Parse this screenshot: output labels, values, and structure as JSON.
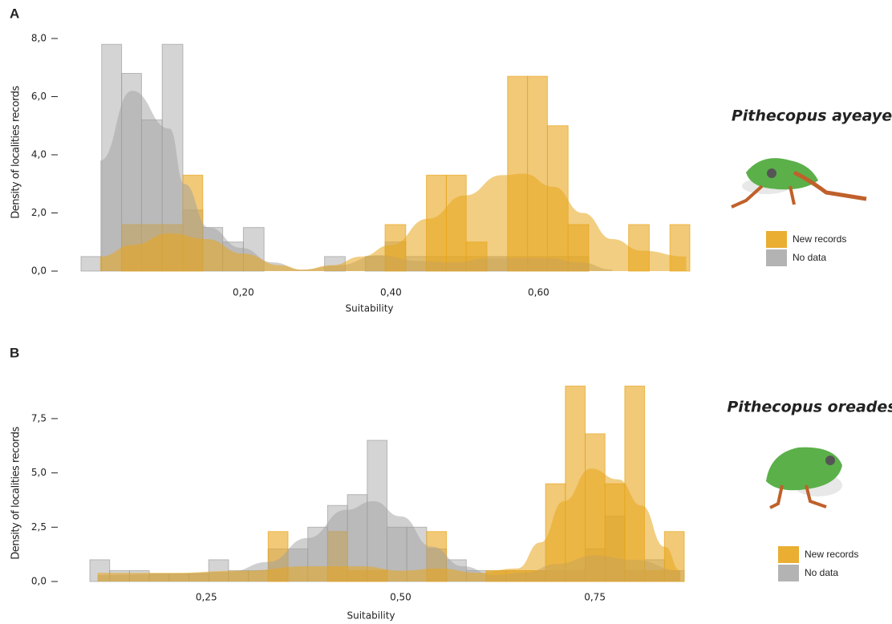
{
  "charts": [
    {
      "panel": "A",
      "annotation": "Pithecopus ayeaye",
      "chart_data": {
        "type": "histogram",
        "xlabel": "Suitability",
        "ylabel": "Density of localities records",
        "xlim": [
          -0.02,
          0.805
        ],
        "ylim": [
          0,
          8.2
        ],
        "xticks": [
          {
            "value": 0.2,
            "label": "0,20"
          },
          {
            "value": 0.4,
            "label": "0,40"
          },
          {
            "value": 0.6,
            "label": "0,60"
          }
        ],
        "yticks": [
          {
            "value": 0,
            "label": "0,0"
          },
          {
            "value": 2,
            "label": "2,0"
          },
          {
            "value": 4,
            "label": "4,0"
          },
          {
            "value": 6,
            "label": "6,0"
          },
          {
            "value": 8,
            "label": "8,0"
          }
        ],
        "bins": [
          -0.02,
          0.008,
          0.035,
          0.062,
          0.09,
          0.118,
          0.145,
          0.172,
          0.2,
          0.228,
          0.255,
          0.282,
          0.31,
          0.338,
          0.365,
          0.392,
          0.42,
          0.448,
          0.475,
          0.502,
          0.53,
          0.558,
          0.585,
          0.612,
          0.64,
          0.668,
          0.695,
          0.722,
          0.75,
          0.778,
          0.805
        ],
        "series": [
          {
            "name": "New records",
            "color": "#e8a51c",
            "values": [
              0,
              0,
              1.6,
              1.6,
              1.6,
              3.3,
              0,
              0,
              0,
              0,
              0,
              0,
              0,
              0,
              0,
              1.6,
              0,
              3.3,
              3.3,
              1.0,
              0,
              6.7,
              6.7,
              5.0,
              1.6,
              0,
              0,
              1.6,
              0,
              1.6
            ],
            "curve_x": [
              0.006,
              0.05,
              0.1,
              0.15,
              0.2,
              0.25,
              0.28,
              0.32,
              0.36,
              0.4,
              0.45,
              0.5,
              0.55,
              0.58,
              0.62,
              0.66,
              0.7,
              0.74,
              0.8
            ],
            "curve_y": [
              0.5,
              0.9,
              1.3,
              1.1,
              0.6,
              0.2,
              0.05,
              0.2,
              0.5,
              0.9,
              1.8,
              2.6,
              3.3,
              3.35,
              2.9,
              2.0,
              1.1,
              0.7,
              0.5
            ]
          },
          {
            "name": "No data",
            "color": "#a0a0a0",
            "values": [
              0.5,
              7.8,
              6.8,
              5.2,
              7.8,
              2.1,
              1.5,
              1.0,
              1.5,
              0,
              0,
              0,
              0.5,
              0,
              0.5,
              1.0,
              0.5,
              0.5,
              0.5,
              0.5,
              0.5,
              0.5,
              0.5,
              0.5,
              0.5,
              0,
              0,
              0,
              0,
              0
            ],
            "curve_x": [
              0.006,
              0.049,
              0.1,
              0.12,
              0.153,
              0.197,
              0.24,
              0.279,
              0.328,
              0.383,
              0.438,
              0.482,
              0.536,
              0.613,
              0.657,
              0.7
            ],
            "curve_y": [
              3.8,
              6.2,
              4.9,
              3.0,
              1.5,
              0.8,
              0.3,
              0.05,
              0.2,
              0.55,
              0.35,
              0.3,
              0.45,
              0.45,
              0.3,
              0.05
            ]
          }
        ]
      }
    },
    {
      "panel": "B",
      "annotation": "Pithecopus oreades",
      "chart_data": {
        "type": "histogram",
        "xlabel": "Suitability",
        "ylabel": "Density of localities records",
        "xlim": [
          0.1,
          0.865
        ],
        "ylim": [
          0,
          9.1
        ],
        "xticks": [
          {
            "value": 0.25,
            "label": "0,25"
          },
          {
            "value": 0.5,
            "label": "0,50"
          },
          {
            "value": 0.75,
            "label": "0,75"
          }
        ],
        "yticks": [
          {
            "value": 0,
            "label": "0,0"
          },
          {
            "value": 2.5,
            "label": "2,5"
          },
          {
            "value": 5,
            "label": "5,0"
          },
          {
            "value": 7.5,
            "label": "7,5"
          }
        ],
        "bins": [
          0.1,
          0.1255,
          0.151,
          0.1765,
          0.202,
          0.2275,
          0.253,
          0.2785,
          0.304,
          0.3295,
          0.355,
          0.3805,
          0.406,
          0.4315,
          0.457,
          0.4825,
          0.508,
          0.5335,
          0.559,
          0.5845,
          0.61,
          0.6355,
          0.661,
          0.6865,
          0.712,
          0.7375,
          0.763,
          0.7885,
          0.814,
          0.8395,
          0.865
        ],
        "series": [
          {
            "name": "New records",
            "color": "#e8a51c",
            "values": [
              0,
              0,
              0,
              0,
              0,
              0,
              0,
              0,
              0,
              2.3,
              0,
              0,
              2.3,
              0.5,
              0.5,
              0,
              0,
              2.3,
              0,
              0,
              0.5,
              0.5,
              0.5,
              4.5,
              9.0,
              6.8,
              4.5,
              9.0,
              0.5,
              2.3
            ],
            "curve_x": [
              0.11,
              0.2,
              0.3,
              0.38,
              0.45,
              0.5,
              0.55,
              0.6,
              0.65,
              0.68,
              0.71,
              0.745,
              0.78,
              0.81,
              0.84,
              0.86
            ],
            "curve_y": [
              0.4,
              0.4,
              0.5,
              0.7,
              0.7,
              0.5,
              0.6,
              0.4,
              0.6,
              1.8,
              3.7,
              5.2,
              4.7,
              3.5,
              1.6,
              0.5
            ]
          },
          {
            "name": "No data",
            "color": "#a0a0a0",
            "values": [
              1.0,
              0.5,
              0.5,
              0.35,
              0.35,
              0.35,
              1.0,
              0.5,
              0.5,
              1.5,
              1.5,
              2.5,
              3.5,
              4.0,
              6.5,
              2.5,
              2.5,
              1.5,
              1.0,
              0.5,
              0.5,
              0.5,
              0.5,
              0.5,
              0.5,
              1.5,
              3.0,
              0.5,
              1.0,
              0.5
            ],
            "curve_x": [
              0.11,
              0.2,
              0.28,
              0.33,
              0.38,
              0.43,
              0.465,
              0.5,
              0.54,
              0.58,
              0.62,
              0.66,
              0.7,
              0.75,
              0.8,
              0.86
            ],
            "curve_y": [
              0.3,
              0.35,
              0.45,
              0.9,
              2.0,
              3.3,
              3.7,
              3.0,
              1.6,
              0.7,
              0.3,
              0.4,
              0.8,
              1.2,
              1.0,
              0.5
            ]
          }
        ]
      }
    }
  ]
}
